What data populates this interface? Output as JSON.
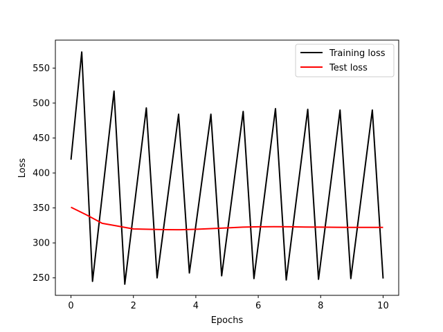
{
  "chart_data": {
    "type": "line",
    "xlabel": "Epochs",
    "ylabel": "Loss",
    "xlim": [
      -0.5,
      10.5
    ],
    "ylim": [
      225,
      590
    ],
    "xticks": [
      0,
      2,
      4,
      6,
      8,
      10
    ],
    "yticks": [
      250,
      300,
      350,
      400,
      450,
      500,
      550
    ],
    "grid": false,
    "legend_position": "top-right",
    "series": [
      {
        "name": "Training loss",
        "color": "#000000",
        "x": [
          0,
          0.345,
          0.69,
          1.034,
          1.379,
          1.724,
          2.069,
          2.414,
          2.759,
          3.103,
          3.448,
          3.793,
          4.138,
          4.483,
          4.828,
          5.172,
          5.517,
          5.862,
          6.207,
          6.552,
          6.897,
          7.241,
          7.586,
          7.931,
          8.276,
          8.621,
          8.966,
          9.31,
          9.655,
          10.0
        ],
        "y": [
          419,
          573,
          245,
          381,
          517,
          241,
          367,
          493,
          250,
          367,
          484,
          257,
          370,
          484,
          253,
          370,
          488,
          249,
          370,
          492,
          247,
          369,
          491,
          248,
          369,
          490,
          249,
          369,
          490,
          249
        ]
      },
      {
        "name": "Test loss",
        "color": "#ff0000",
        "x": [
          0,
          0.5,
          1.0,
          1.5,
          2.0,
          2.5,
          3.0,
          3.5,
          4.0,
          4.5,
          5.0,
          5.5,
          6.0,
          6.5,
          7.0,
          7.5,
          8.0,
          8.5,
          9.0,
          9.5,
          10.0
        ],
        "y": [
          351,
          340,
          328,
          324,
          320,
          319.5,
          319,
          318.8,
          319.5,
          320.5,
          321.5,
          322.5,
          323,
          323.2,
          323,
          322.7,
          322.5,
          322.3,
          322.2,
          322.2,
          322.2
        ]
      }
    ]
  }
}
